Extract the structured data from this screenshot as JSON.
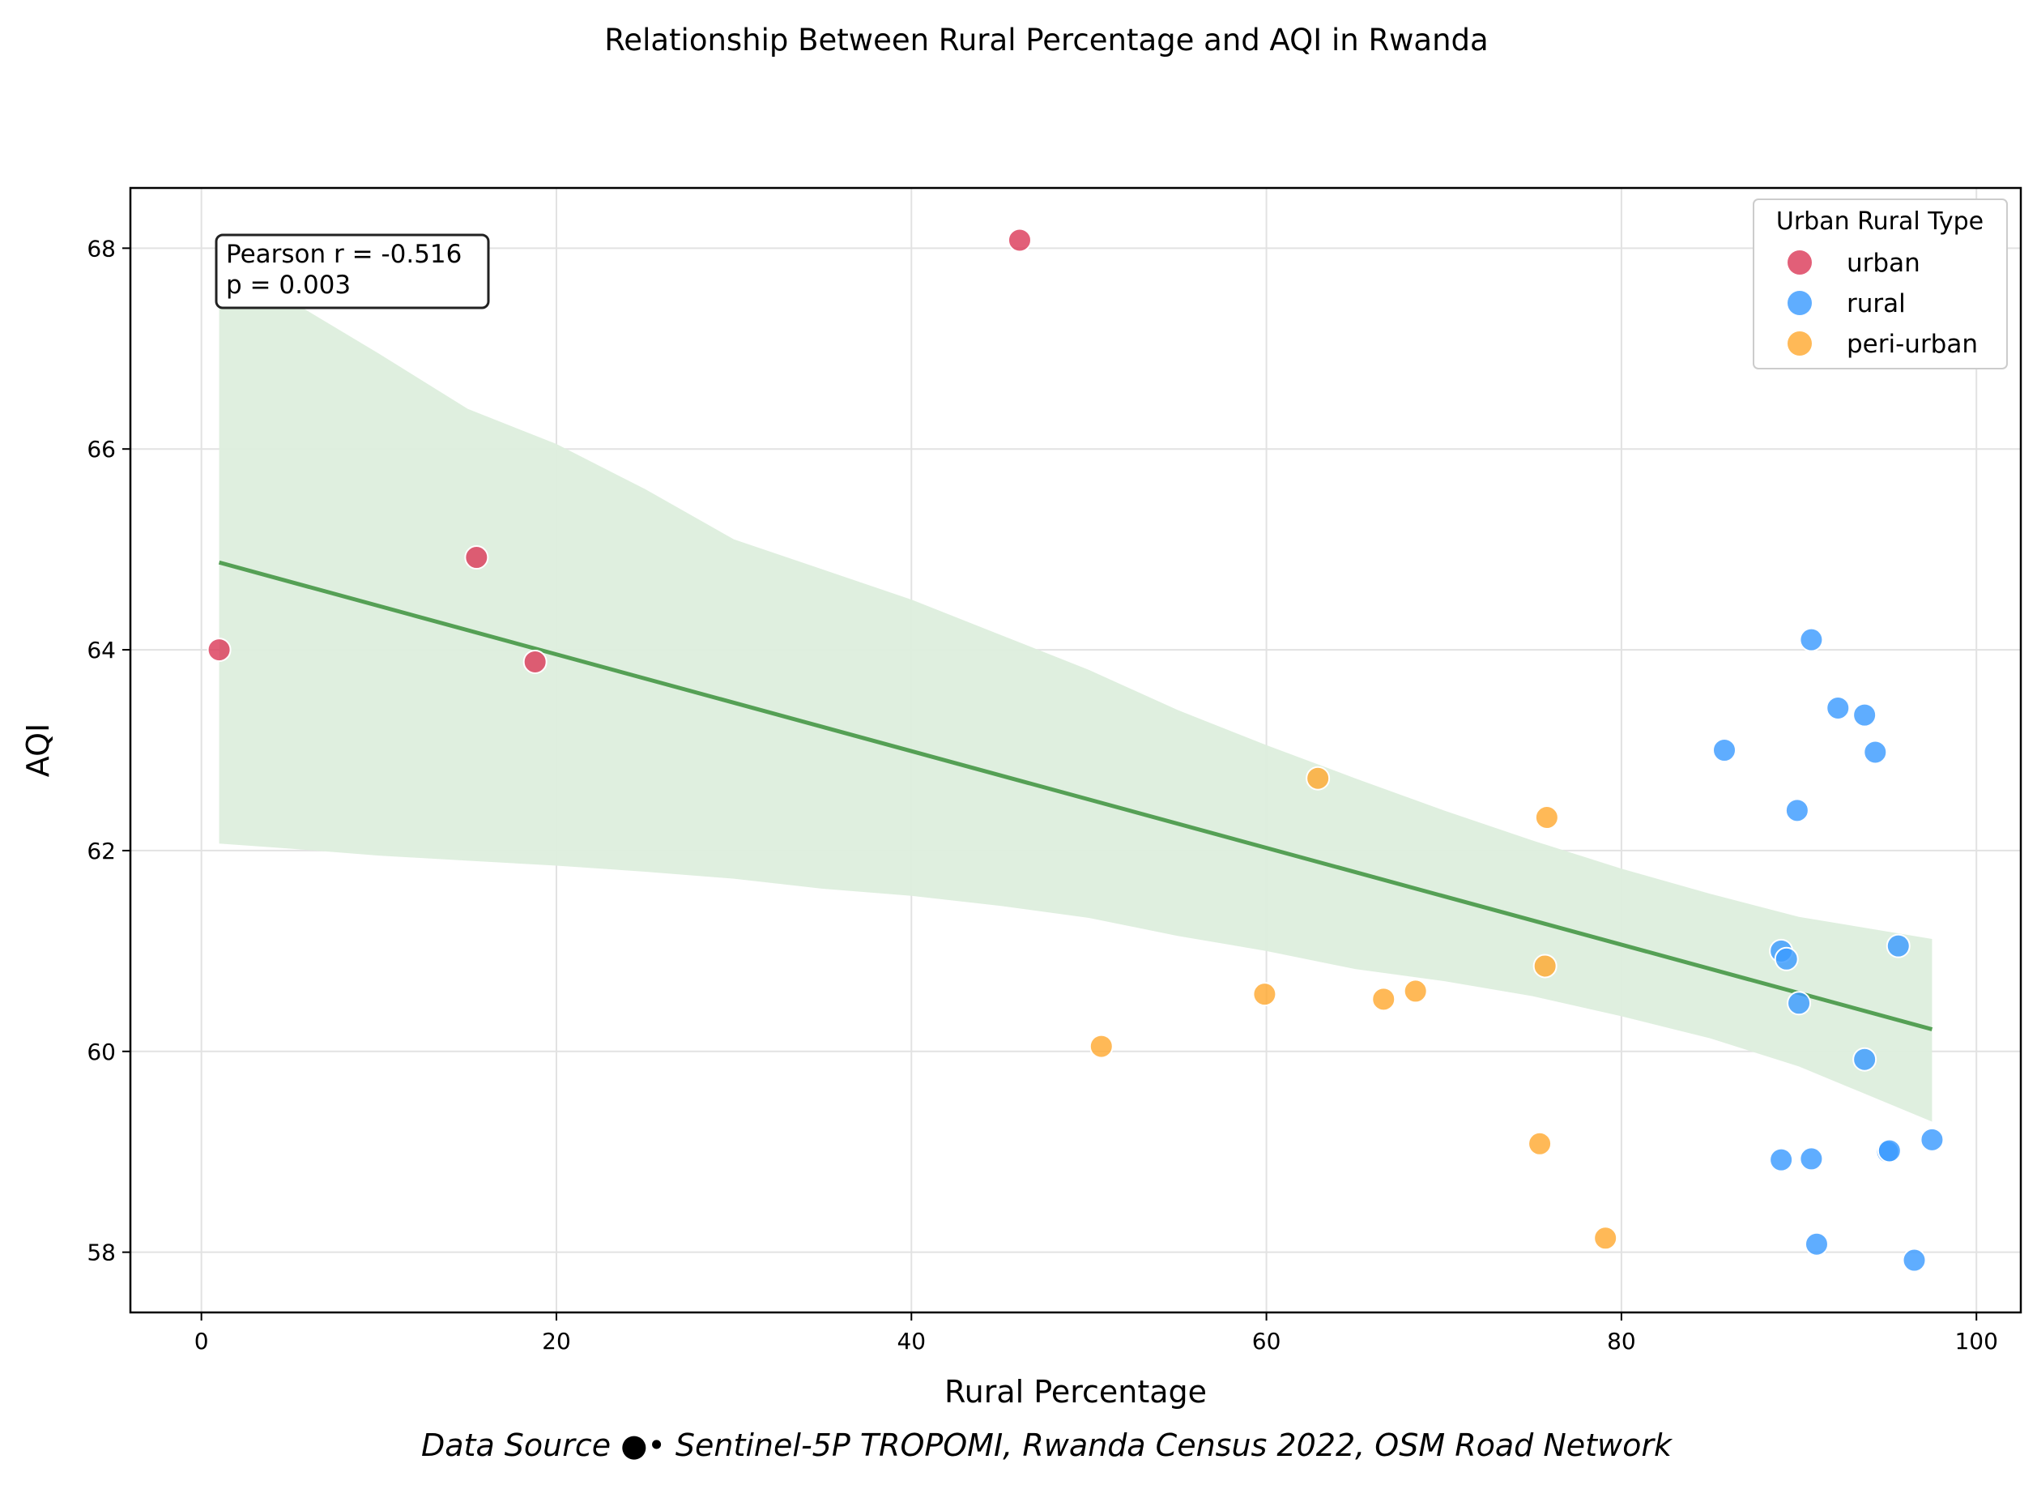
{
  "chart_data": {
    "type": "scatter",
    "title": "Relationship Between Rural Percentage and AQI in Rwanda",
    "xlabel": "Rural Percentage",
    "ylabel": "AQI",
    "xlim": [
      -4,
      102.5
    ],
    "ylim": [
      57.4,
      68.6
    ],
    "xticks": [
      "0",
      "20",
      "40",
      "60",
      "80",
      "100"
    ],
    "yticks": [
      "58",
      "60",
      "62",
      "64",
      "66",
      "68"
    ],
    "grid": true,
    "legend": {
      "title": "Urban Rural Type",
      "placement": "top-right"
    },
    "series": [
      {
        "name": "urban",
        "color": "#dc3c5a",
        "points": [
          [
            1.0,
            64.0
          ],
          [
            15.5,
            64.92
          ],
          [
            18.8,
            63.88
          ],
          [
            46.1,
            68.08
          ]
        ]
      },
      {
        "name": "rural",
        "color": "#3c9bff",
        "points": [
          [
            85.8,
            63.0
          ],
          [
            90.7,
            64.1
          ],
          [
            92.2,
            63.42
          ],
          [
            93.7,
            63.35
          ],
          [
            94.3,
            62.98
          ],
          [
            89.9,
            62.4
          ],
          [
            89.0,
            61.0
          ],
          [
            89.3,
            60.92
          ],
          [
            90.0,
            60.48
          ],
          [
            95.6,
            61.05
          ],
          [
            93.7,
            59.92
          ],
          [
            89.0,
            58.92
          ],
          [
            90.7,
            58.93
          ],
          [
            95.0,
            59.0
          ],
          [
            95.1,
            59.01
          ],
          [
            97.5,
            59.12
          ],
          [
            91.0,
            58.08
          ],
          [
            96.5,
            57.92
          ]
        ]
      },
      {
        "name": "peri-urban",
        "color": "#ffaa32",
        "points": [
          [
            62.9,
            62.72
          ],
          [
            75.8,
            62.33
          ],
          [
            75.7,
            60.85
          ],
          [
            59.9,
            60.57
          ],
          [
            66.6,
            60.52
          ],
          [
            68.4,
            60.6
          ],
          [
            50.7,
            60.05
          ],
          [
            75.4,
            59.08
          ],
          [
            79.1,
            58.14
          ]
        ]
      }
    ],
    "regression": {
      "color": "#55a055",
      "band_color": "#ddeedd",
      "line": [
        [
          1.0,
          64.87
        ],
        [
          97.5,
          60.22
        ]
      ],
      "band": [
        [
          1.0,
          62.07,
          67.75
        ],
        [
          5.0,
          62.02,
          67.48
        ],
        [
          10.0,
          61.95,
          66.95
        ],
        [
          15.0,
          61.9,
          66.4
        ],
        [
          20.0,
          61.85,
          66.05
        ],
        [
          25.0,
          61.79,
          65.6
        ],
        [
          30.0,
          61.72,
          65.1
        ],
        [
          35.0,
          61.62,
          64.8
        ],
        [
          40.0,
          61.55,
          64.5
        ],
        [
          45.0,
          61.45,
          64.15
        ],
        [
          50.0,
          61.33,
          63.8
        ],
        [
          55.0,
          61.15,
          63.4
        ],
        [
          60.0,
          61.0,
          63.05
        ],
        [
          65.0,
          60.82,
          62.72
        ],
        [
          70.0,
          60.7,
          62.4
        ],
        [
          75.0,
          60.55,
          62.1
        ],
        [
          80.0,
          60.35,
          61.82
        ],
        [
          85.0,
          60.13,
          61.57
        ],
        [
          90.0,
          59.85,
          61.34
        ],
        [
          97.5,
          59.3,
          61.12
        ]
      ]
    },
    "annotation": {
      "line1": "Pearson r = -0.516",
      "line2": "p = 0.003"
    },
    "footer": "Data Source ●• Sentinel-5P TROPOMI, Rwanda Census 2022, OSM Road Network"
  }
}
